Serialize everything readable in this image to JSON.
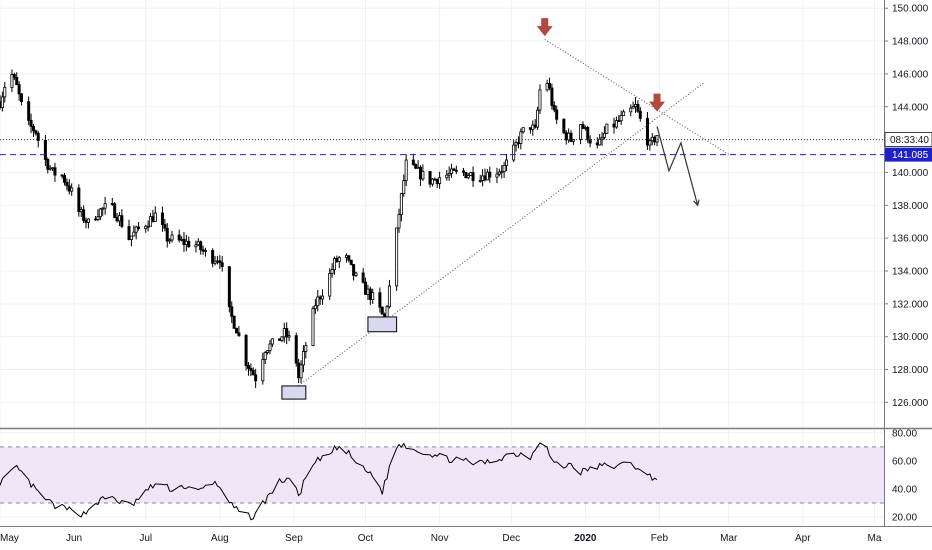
{
  "colors": {
    "background": "#ffffff",
    "grid": "#eef0f3",
    "candle": "#000000",
    "support_line": "#1e22c8",
    "price_tag": "#1e22c8",
    "arrow_marker": "#b3483c",
    "trend_line": "#555555",
    "projection": "#333333",
    "rsi_band": "#f1e6f7",
    "rsi_band_border": "#9c7aa8",
    "rsi_line": "#000000",
    "annotation_box": "#d8d8f0"
  },
  "chart_data": [
    {
      "type": "candlestick",
      "title": "",
      "grid": true,
      "x_range": [
        "2019-05-01",
        "2020-05-05"
      ],
      "y_range": [
        124.5,
        150.5
      ],
      "y_ticks": [
        126,
        128,
        130,
        132,
        134,
        136,
        138,
        140,
        142,
        144,
        146,
        148,
        150
      ],
      "y_tick_labels": [
        "126.000",
        "128.000",
        "130.000",
        "132.000",
        "134.000",
        "136.000",
        "138.000",
        "140.000",
        "142.000",
        "144.000",
        "146.000",
        "148.000",
        "150.000"
      ],
      "x_tick_dates": [
        "2019-05-01",
        "2019-06-01",
        "2019-07-01",
        "2019-08-01",
        "2019-09-01",
        "2019-10-01",
        "2019-11-01",
        "2019-12-01",
        "2020-01-01",
        "2020-02-01",
        "2020-03-01",
        "2020-04-01",
        "2020-05-01"
      ],
      "x_tick_labels": [
        "May",
        "Jun",
        "Jul",
        "Aug",
        "Sep",
        "Oct",
        "Nov",
        "Dec",
        "2020",
        "Feb",
        "Mar",
        "Apr",
        "Ma"
      ],
      "countdown_label": "08:33:40",
      "countdown_price": 142.0,
      "support_level": 141.085,
      "support_label": "141.085",
      "close_anchors": [
        [
          "2019-05-01",
          144.3
        ],
        [
          "2019-05-05",
          146.3
        ],
        [
          "2019-05-08",
          145.2
        ],
        [
          "2019-05-12",
          143.0
        ],
        [
          "2019-05-16",
          142.5
        ],
        [
          "2019-05-19",
          141.0
        ],
        [
          "2019-05-23",
          140.0
        ],
        [
          "2019-05-27",
          139.8
        ],
        [
          "2019-05-31",
          138.8
        ],
        [
          "2019-06-03",
          137.6
        ],
        [
          "2019-06-07",
          136.9
        ],
        [
          "2019-06-11",
          137.6
        ],
        [
          "2019-06-16",
          138.0
        ],
        [
          "2019-06-20",
          137.2
        ],
        [
          "2019-06-24",
          136.0
        ],
        [
          "2019-06-30",
          136.8
        ],
        [
          "2019-07-05",
          137.4
        ],
        [
          "2019-07-10",
          136.0
        ],
        [
          "2019-07-15",
          135.8
        ],
        [
          "2019-07-22",
          135.6
        ],
        [
          "2019-07-28",
          134.8
        ],
        [
          "2019-08-01",
          134.8
        ],
        [
          "2019-08-05",
          131.5
        ],
        [
          "2019-08-08",
          130.5
        ],
        [
          "2019-08-12",
          128.5
        ],
        [
          "2019-08-16",
          127.5
        ],
        [
          "2019-08-20",
          129.3
        ],
        [
          "2019-08-24",
          129.6
        ],
        [
          "2019-08-28",
          130.2
        ],
        [
          "2019-09-01",
          129.5
        ],
        [
          "2019-09-03",
          127.5
        ],
        [
          "2019-09-06",
          129.5
        ],
        [
          "2019-09-10",
          132.0
        ],
        [
          "2019-09-14",
          133.0
        ],
        [
          "2019-09-18",
          134.5
        ],
        [
          "2019-09-22",
          135.0
        ],
        [
          "2019-09-26",
          133.8
        ],
        [
          "2019-09-30",
          133.0
        ],
        [
          "2019-10-05",
          132.2
        ],
        [
          "2019-10-09",
          131.0
        ],
        [
          "2019-10-12",
          134.0
        ],
        [
          "2019-10-15",
          137.5
        ],
        [
          "2019-10-18",
          140.5
        ],
        [
          "2019-10-23",
          140.0
        ],
        [
          "2019-10-28",
          139.5
        ],
        [
          "2019-11-03",
          139.8
        ],
        [
          "2019-11-10",
          140.0
        ],
        [
          "2019-11-17",
          139.8
        ],
        [
          "2019-11-24",
          140.0
        ],
        [
          "2019-11-28",
          140.3
        ],
        [
          "2019-12-01",
          141.0
        ],
        [
          "2019-12-04",
          142.0
        ],
        [
          "2019-12-08",
          143.0
        ],
        [
          "2019-12-11",
          142.5
        ],
        [
          "2019-12-13",
          145.0
        ],
        [
          "2019-12-15",
          146.0
        ],
        [
          "2019-12-17",
          145.0
        ],
        [
          "2019-12-19",
          143.5
        ],
        [
          "2019-12-22",
          142.5
        ],
        [
          "2019-12-26",
          142.0
        ],
        [
          "2019-12-30",
          143.0
        ],
        [
          "2020-01-03",
          142.0
        ],
        [
          "2020-01-06",
          141.5
        ],
        [
          "2020-01-10",
          142.6
        ],
        [
          "2020-01-14",
          143.0
        ],
        [
          "2020-01-18",
          143.5
        ],
        [
          "2020-01-22",
          144.0
        ],
        [
          "2020-01-25",
          142.8
        ],
        [
          "2020-01-28",
          141.6
        ],
        [
          "2020-01-31",
          142.3
        ]
      ],
      "annotations": {
        "top_marker": {
          "date": "2019-12-15",
          "price": 148.3
        },
        "second_marker": {
          "date": "2020-01-31",
          "price": 143.7
        },
        "falling_trend": [
          [
            "2019-12-15",
            148.1
          ],
          [
            "2020-03-01",
            141.1
          ]
        ],
        "rising_trend": [
          [
            "2019-09-01",
            126.8
          ],
          [
            "2020-02-20",
            145.5
          ]
        ],
        "low_boxes": [
          {
            "from": "2019-08-27",
            "to": "2019-09-06",
            "price_low": 126.2,
            "price_high": 127.0
          },
          {
            "from": "2019-10-02",
            "to": "2019-10-14",
            "price_low": 130.3,
            "price_high": 131.2
          }
        ],
        "projection_path": [
          [
            "2020-01-31",
            142.8
          ],
          [
            "2020-02-05",
            140.1
          ],
          [
            "2020-02-10",
            141.8
          ],
          [
            "2020-02-17",
            138.0
          ]
        ]
      }
    },
    {
      "type": "line",
      "title": "",
      "y_range": [
        15,
        82
      ],
      "y_ticks": [
        20,
        40,
        60,
        80
      ],
      "y_tick_labels": [
        "20.00",
        "40.00",
        "60.00",
        "80.00"
      ],
      "band": [
        30,
        70
      ],
      "anchors": [
        [
          "2019-05-01",
          45
        ],
        [
          "2019-05-05",
          50
        ],
        [
          "2019-05-08",
          55
        ],
        [
          "2019-05-13",
          45
        ],
        [
          "2019-05-18",
          35
        ],
        [
          "2019-05-24",
          28
        ],
        [
          "2019-05-30",
          25
        ],
        [
          "2019-06-05",
          22
        ],
        [
          "2019-06-10",
          30
        ],
        [
          "2019-06-16",
          35
        ],
        [
          "2019-06-21",
          30
        ],
        [
          "2019-06-25",
          28
        ],
        [
          "2019-07-01",
          38
        ],
        [
          "2019-07-06",
          45
        ],
        [
          "2019-07-11",
          40
        ],
        [
          "2019-07-17",
          42
        ],
        [
          "2019-07-23",
          38
        ],
        [
          "2019-07-29",
          45
        ],
        [
          "2019-08-02",
          40
        ],
        [
          "2019-08-06",
          28
        ],
        [
          "2019-08-10",
          22
        ],
        [
          "2019-08-15",
          20
        ],
        [
          "2019-08-20",
          32
        ],
        [
          "2019-08-26",
          45
        ],
        [
          "2019-08-30",
          48
        ],
        [
          "2019-09-03",
          35
        ],
        [
          "2019-09-07",
          52
        ],
        [
          "2019-09-11",
          60
        ],
        [
          "2019-09-15",
          63
        ],
        [
          "2019-09-19",
          70
        ],
        [
          "2019-09-24",
          65
        ],
        [
          "2019-09-29",
          55
        ],
        [
          "2019-10-04",
          50
        ],
        [
          "2019-10-08",
          38
        ],
        [
          "2019-10-11",
          55
        ],
        [
          "2019-10-14",
          70
        ],
        [
          "2019-10-17",
          72
        ],
        [
          "2019-10-22",
          68
        ],
        [
          "2019-10-28",
          65
        ],
        [
          "2019-11-03",
          62
        ],
        [
          "2019-11-10",
          60
        ],
        [
          "2019-11-17",
          58
        ],
        [
          "2019-11-24",
          60
        ],
        [
          "2019-11-30",
          65
        ],
        [
          "2019-12-05",
          65
        ],
        [
          "2019-12-09",
          63
        ],
        [
          "2019-12-14",
          78
        ],
        [
          "2019-12-18",
          60
        ],
        [
          "2019-12-22",
          55
        ],
        [
          "2019-12-26",
          58
        ],
        [
          "2019-12-30",
          52
        ],
        [
          "2020-01-04",
          55
        ],
        [
          "2020-01-10",
          57
        ],
        [
          "2020-01-15",
          56
        ],
        [
          "2020-01-20",
          60
        ],
        [
          "2020-01-25",
          50
        ],
        [
          "2020-01-31",
          48
        ]
      ]
    }
  ]
}
